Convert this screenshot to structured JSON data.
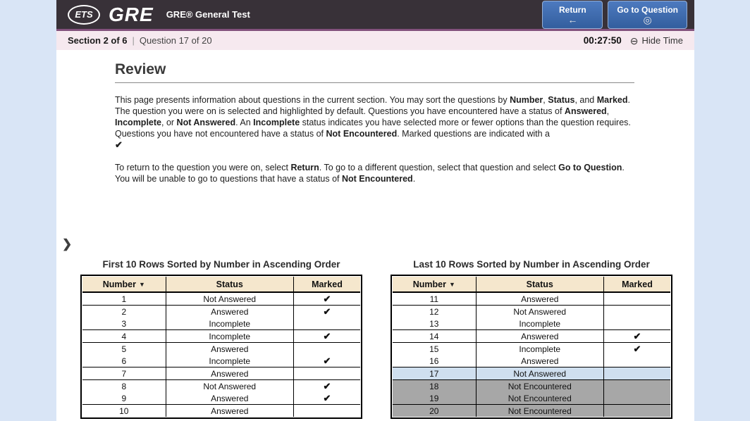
{
  "colors": {
    "topbar_bg": "#383138",
    "topbar_accent_line": "#82517c",
    "statusbar_bg": "#f6e9ef",
    "button_blue": "#3d6aae",
    "button_border": "#94afd7",
    "page_margin_blue": "#d9e5f6",
    "table_header_tan": "#f5e7cd",
    "highlight_row_blue": "#cfdfef",
    "not_encountered_gray": "#a7a7a7"
  },
  "icons": {
    "sort_desc": "▼",
    "check": "✔",
    "arrow_left": "←",
    "goto_target": "◎",
    "clock": "⊖",
    "chevron": "❯"
  },
  "header": {
    "ets_label": "ETS",
    "brand": "GRE",
    "subtitle": "GRE® General Test",
    "buttons": [
      {
        "label": "Return",
        "icon": "arrow-left-icon"
      },
      {
        "label": "Go to Question",
        "icon": "go-to-question-icon"
      }
    ]
  },
  "statusbar": {
    "section": "Section 2 of 6",
    "divider": "|",
    "question": "Question 17 of 20",
    "timer": "00:27:50",
    "hide_time": "Hide Time"
  },
  "review": {
    "title": "Review",
    "paragraphs": [
      [
        {
          "t": "This page presents information about questions in the current section. You may sort the questions by "
        },
        {
          "t": "Number",
          "b": true
        },
        {
          "t": ", "
        },
        {
          "t": "Status",
          "b": true
        },
        {
          "t": ", and "
        },
        {
          "t": "Marked",
          "b": true
        },
        {
          "t": ". The question you were on is selected and highlighted by default. Questions you have encountered have a status of "
        },
        {
          "t": "Answered",
          "b": true
        },
        {
          "t": ", "
        },
        {
          "t": "Incomplete",
          "b": true
        },
        {
          "t": ", or "
        },
        {
          "t": "Not Answered",
          "b": true
        },
        {
          "t": ". An "
        },
        {
          "t": "Incomplete",
          "b": true
        },
        {
          "t": " status indicates you have selected more or fewer options than the question requires. Questions you have not encountered have a status of "
        },
        {
          "t": "Not Encountered",
          "b": true
        },
        {
          "t": ". Marked questions are indicated with a"
        },
        {
          "br": true
        },
        {
          "t": "✔",
          "check": true
        }
      ],
      [
        {
          "t": "To return to the question you were on, select "
        },
        {
          "t": "Return",
          "b": true
        },
        {
          "t": ". To go to a different question, select that question and select "
        },
        {
          "t": "Go to Question",
          "b": true
        },
        {
          "t": ". You will be unable to go to questions that have a status of "
        },
        {
          "t": "Not Encountered",
          "b": true
        },
        {
          "t": "."
        }
      ]
    ]
  },
  "tables": [
    {
      "title": "First 10 Rows Sorted by Number in Ascending Order",
      "columns": [
        "Number",
        "Status",
        "Marked"
      ],
      "rows": [
        {
          "number": "1",
          "status": "Not Answered",
          "marked": true,
          "divider": true
        },
        {
          "number": "2",
          "status": "Answered",
          "marked": true,
          "divider": false
        },
        {
          "number": "3",
          "status": "Incomplete",
          "marked": false,
          "divider": true
        },
        {
          "number": "4",
          "status": "Incomplete",
          "marked": true,
          "divider": true
        },
        {
          "number": "5",
          "status": "Answered",
          "marked": false,
          "divider": false
        },
        {
          "number": "6",
          "status": "Incomplete",
          "marked": true,
          "divider": true
        },
        {
          "number": "7",
          "status": "Answered",
          "marked": false,
          "divider": true
        },
        {
          "number": "8",
          "status": "Not Answered",
          "marked": true,
          "divider": false
        },
        {
          "number": "9",
          "status": "Answered",
          "marked": true,
          "divider": true
        },
        {
          "number": "10",
          "status": "Answered",
          "marked": false,
          "divider": false
        }
      ]
    },
    {
      "title": "Last 10 Rows Sorted by Number in Ascending Order",
      "columns": [
        "Number",
        "Status",
        "Marked"
      ],
      "rows": [
        {
          "number": "11",
          "status": "Answered",
          "marked": false,
          "divider": true
        },
        {
          "number": "12",
          "status": "Not Answered",
          "marked": false,
          "divider": false
        },
        {
          "number": "13",
          "status": "Incomplete",
          "marked": false,
          "divider": true
        },
        {
          "number": "14",
          "status": "Answered",
          "marked": true,
          "divider": true
        },
        {
          "number": "15",
          "status": "Incomplete",
          "marked": true,
          "divider": false
        },
        {
          "number": "16",
          "status": "Answered",
          "marked": false,
          "divider": true
        },
        {
          "number": "17",
          "status": "Not Answered",
          "marked": false,
          "divider": true,
          "highlight": true
        },
        {
          "number": "18",
          "status": "Not Encountered",
          "marked": false,
          "divider": false,
          "gray": true
        },
        {
          "number": "19",
          "status": "Not Encountered",
          "marked": false,
          "divider": true,
          "gray": true
        },
        {
          "number": "20",
          "status": "Not Encountered",
          "marked": false,
          "divider": false,
          "gray": true
        }
      ]
    }
  ]
}
